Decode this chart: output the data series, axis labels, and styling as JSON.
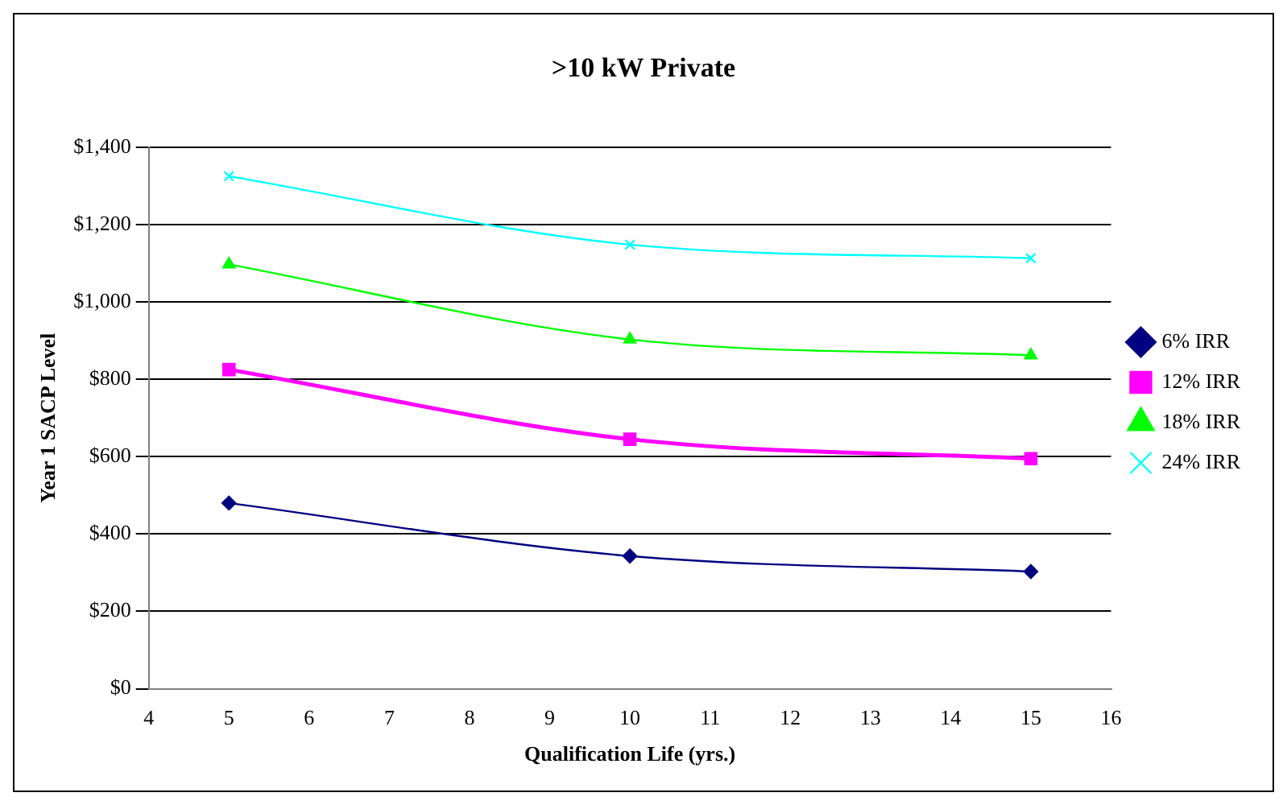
{
  "chart_data": {
    "type": "line",
    "title": ">10 kW Private",
    "xlabel": "Qualification Life (yrs.)",
    "ylabel": "Year 1 SACP Level",
    "x": [
      5,
      10,
      15
    ],
    "series": [
      {
        "name": "6% IRR",
        "color": "#000080",
        "values": [
          480,
          343,
          303
        ],
        "marker": "diamond"
      },
      {
        "name": "12% IRR",
        "color": "#ff00ff",
        "values": [
          825,
          645,
          595
        ],
        "marker": "square"
      },
      {
        "name": "18% IRR",
        "color": "#00ff00",
        "values": [
          1097,
          903,
          862
        ],
        "marker": "triangle"
      },
      {
        "name": "24% IRR",
        "color": "#00ffff",
        "values": [
          1325,
          1148,
          1113
        ],
        "marker": "cross"
      }
    ],
    "xlim": [
      4,
      16
    ],
    "xticks": [
      4,
      5,
      6,
      7,
      8,
      9,
      10,
      11,
      12,
      13,
      14,
      15,
      16
    ],
    "ylim": [
      0,
      1400
    ],
    "yticks": [
      {
        "value": 0,
        "label": "$0"
      },
      {
        "value": 200,
        "label": "$200"
      },
      {
        "value": 400,
        "label": "$400"
      },
      {
        "value": 600,
        "label": "$600"
      },
      {
        "value": 800,
        "label": "$800"
      },
      {
        "value": 1000,
        "label": "$1,000"
      },
      {
        "value": 1200,
        "label": "$1,200"
      },
      {
        "value": 1400,
        "label": "$1,400"
      }
    ],
    "grid": "y",
    "legend": "right",
    "line_style": "solid"
  }
}
